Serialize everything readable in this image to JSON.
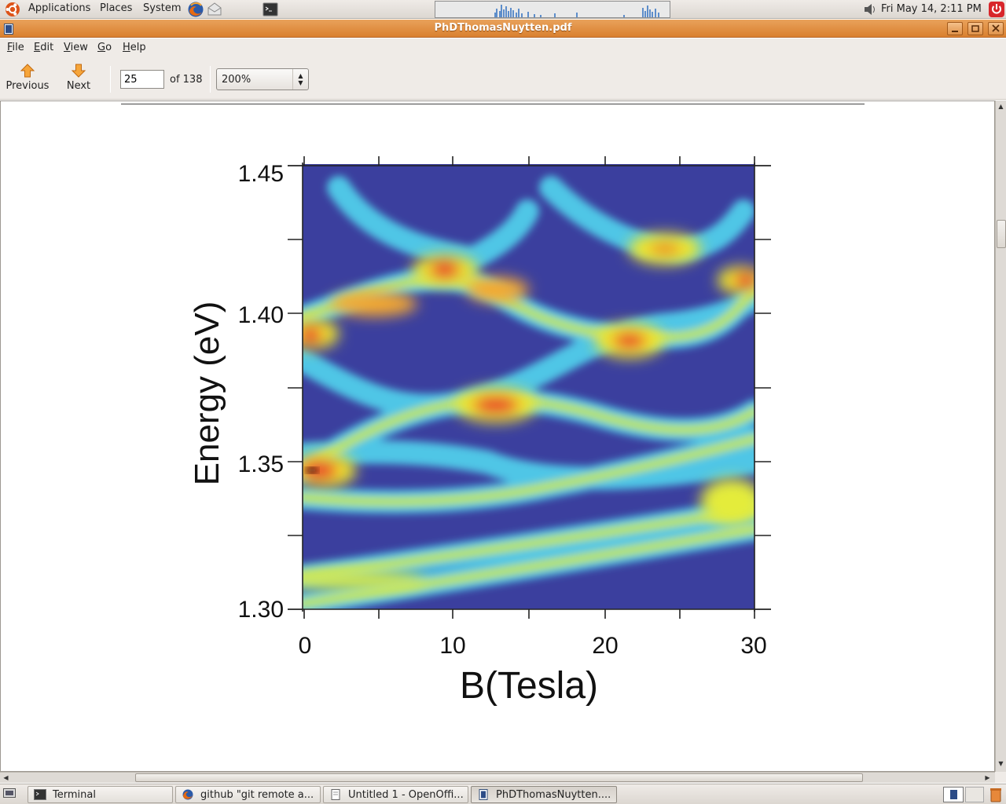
{
  "top_panel": {
    "menus": [
      "Applications",
      "Places",
      "System"
    ],
    "clock": "Fri May 14,  2:11 PM",
    "launchers": [
      "firefox-icon",
      "mail-icon",
      "terminal-icon"
    ]
  },
  "window": {
    "title": "PhDThomasNuytten.pdf"
  },
  "menubar": {
    "items": [
      "File",
      "Edit",
      "View",
      "Go",
      "Help"
    ]
  },
  "toolbar": {
    "previous_label": "Previous",
    "next_label": "Next",
    "page_current": "25",
    "page_total": "of 138",
    "zoom": "200%"
  },
  "figure": {
    "y_axis_label": "Energy (eV)",
    "x_axis_label": "B(Tesla)",
    "y_ticks": [
      "1.45",
      "1.40",
      "1.35",
      "1.30"
    ],
    "x_ticks": [
      "0",
      "10",
      "20",
      "30"
    ]
  },
  "taskbar": {
    "tasks": [
      {
        "label": "Terminal",
        "icon": "terminal-icon"
      },
      {
        "label": "github \"git remote a...",
        "icon": "firefox-icon"
      },
      {
        "label": "Untitled 1 - OpenOffi...",
        "icon": "document-icon"
      },
      {
        "label": "PhDThomasNuytten....",
        "icon": "pdf-icon"
      }
    ]
  },
  "colors": {
    "titlebar": "#d9802f",
    "heatmap_background": "#3b3f9e",
    "heatmap_band": "#4fc6e6",
    "heatmap_hot": "#e8242a"
  }
}
